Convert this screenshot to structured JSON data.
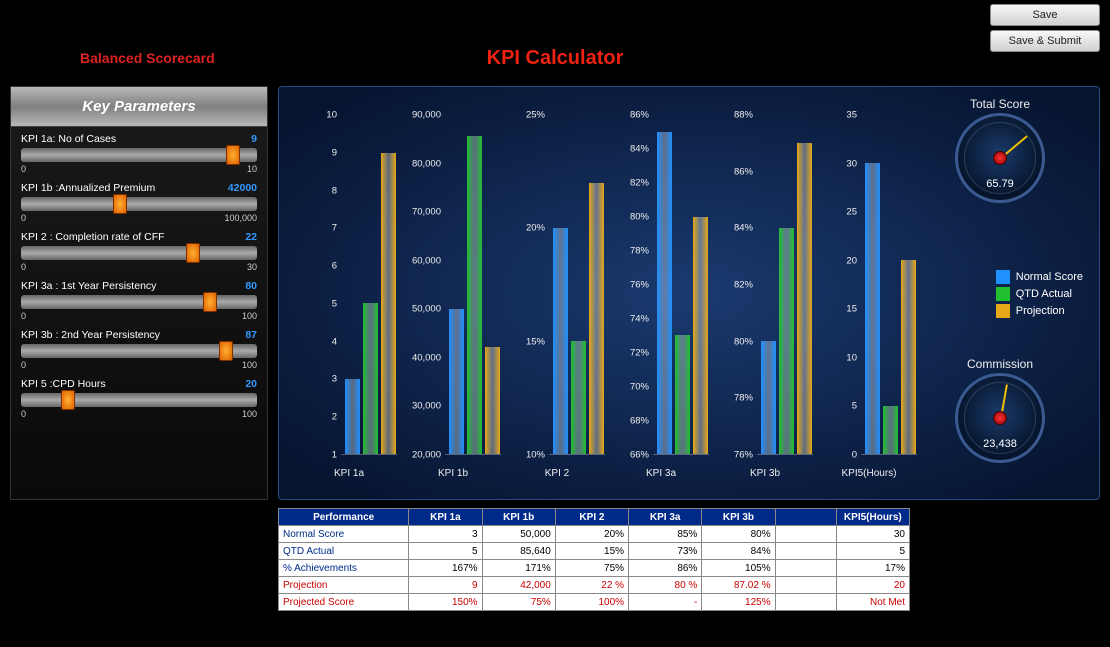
{
  "buttons": {
    "save": "Save",
    "save_submit": "Save & Submit"
  },
  "header": {
    "scorecard": "Balanced Scorecard",
    "title": "KPI Calculator"
  },
  "panel_title": "Key Parameters",
  "sliders": [
    {
      "label": "KPI 1a: No of Cases",
      "value": "9",
      "min": "0",
      "max": "10",
      "pct": 90
    },
    {
      "label": "KPI 1b :Annualized Premium",
      "value": "42000",
      "min": "0",
      "max": "100,000",
      "pct": 42
    },
    {
      "label": "KPI 2 : Completion rate of CFF",
      "value": "22",
      "min": "0",
      "max": "30",
      "pct": 73
    },
    {
      "label": "KPI 3a : 1st Year Persistency",
      "value": "80",
      "min": "0",
      "max": "100",
      "pct": 80
    },
    {
      "label": "KPI 3b : 2nd Year Persistency",
      "value": "87",
      "min": "0",
      "max": "100",
      "pct": 87
    },
    {
      "label": "KPI 5 :CPD Hours",
      "value": "20",
      "min": "0",
      "max": "100",
      "pct": 20
    }
  ],
  "colors": {
    "normal": "#1e90ff",
    "qtd": "#20c030",
    "proj": "#e6a817",
    "panel_bg": "#0d2248"
  },
  "legend": {
    "normal": "Normal Score",
    "qtd": "QTD Actual",
    "proj": "Projection"
  },
  "charts": [
    {
      "name": "KPI 1a",
      "ymin": 1,
      "ymax": 10,
      "yticks": [
        1,
        2,
        3,
        4,
        5,
        6,
        7,
        8,
        9,
        10
      ],
      "fmt": "int",
      "bars": {
        "normal": 3,
        "qtd": 5,
        "proj": 9
      }
    },
    {
      "name": "KPI 1b",
      "ymin": 20000,
      "ymax": 90000,
      "yticks": [
        20000,
        30000,
        40000,
        50000,
        60000,
        70000,
        80000,
        90000
      ],
      "fmt": "comma",
      "bars": {
        "normal": 50000,
        "qtd": 85640,
        "proj": 42000
      }
    },
    {
      "name": "KPI 2",
      "ymin": 10,
      "ymax": 25,
      "yticks": [
        10,
        15,
        20,
        25
      ],
      "fmt": "pct",
      "bars": {
        "normal": 20,
        "qtd": 15,
        "proj": 22
      }
    },
    {
      "name": "KPI 3a",
      "ymin": 66,
      "ymax": 86,
      "yticks": [
        66,
        68,
        70,
        72,
        74,
        76,
        78,
        80,
        82,
        84,
        86
      ],
      "fmt": "pct",
      "bars": {
        "normal": 85,
        "qtd": 73,
        "proj": 80
      }
    },
    {
      "name": "KPI 3b",
      "ymin": 76,
      "ymax": 88,
      "yticks": [
        76,
        78,
        80,
        82,
        84,
        86,
        88
      ],
      "fmt": "pct",
      "bars": {
        "normal": 80,
        "qtd": 84,
        "proj": 87.02
      }
    },
    {
      "name": "KPI5(Hours)",
      "ymin": 0,
      "ymax": 35,
      "yticks": [
        0,
        5,
        10,
        15,
        20,
        25,
        30,
        35
      ],
      "fmt": "int",
      "bars": {
        "normal": 30,
        "qtd": 5,
        "proj": 20
      }
    }
  ],
  "gauges": {
    "total_score": {
      "title": "Total Score",
      "value": "65.79",
      "angle": 50
    },
    "commission": {
      "title": "Commission",
      "value": "23,438",
      "angle": 10
    }
  },
  "table": {
    "headers": [
      "Performance",
      "KPI 1a",
      "KPI 1b",
      "KPI 2",
      "KPI 3a",
      "KPI 3b",
      "",
      "KPI5(Hours)"
    ],
    "rows": [
      {
        "label": "Normal Score",
        "red": false,
        "cells": [
          "3",
          "50,000",
          "20%",
          "85%",
          "80%",
          "",
          "30"
        ]
      },
      {
        "label": "QTD Actual",
        "red": false,
        "cells": [
          "5",
          "85,640",
          "15%",
          "73%",
          "84%",
          "",
          "5"
        ]
      },
      {
        "label": "% Achievements",
        "red": false,
        "cells": [
          "167%",
          "171%",
          "75%",
          "86%",
          "105%",
          "",
          "17%"
        ]
      },
      {
        "label": "Projection",
        "red": true,
        "cells": [
          "9",
          "42,000",
          "22 %",
          "80 %",
          "87.02 %",
          "",
          "20"
        ]
      },
      {
        "label": "Projected Score",
        "red": true,
        "cells": [
          "150%",
          "75%",
          "100%",
          "-",
          "125%",
          "",
          "Not Met"
        ]
      }
    ]
  }
}
